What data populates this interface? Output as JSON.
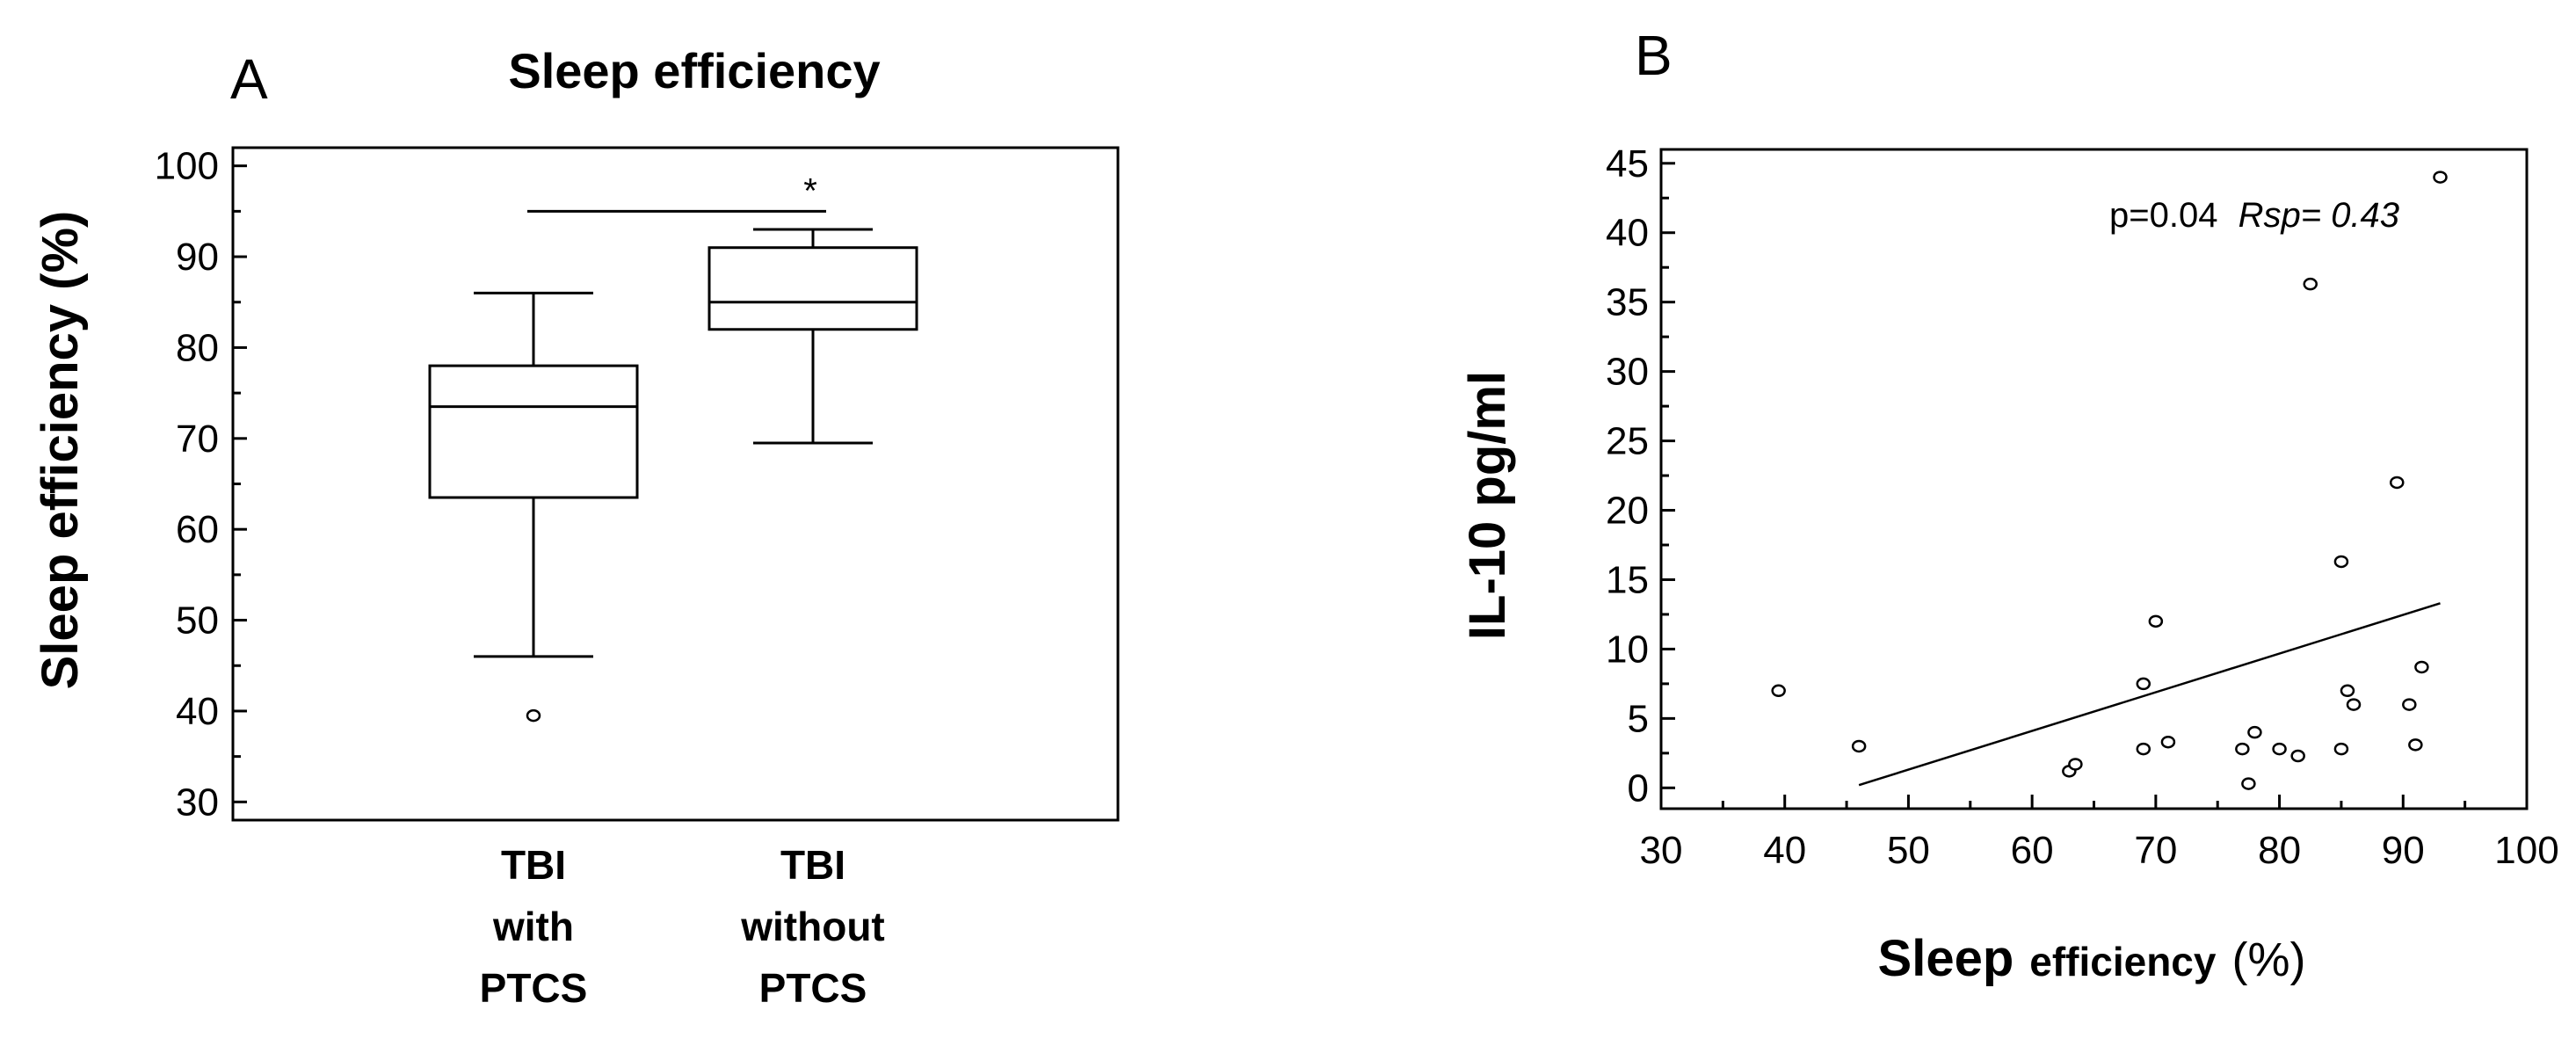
{
  "chart_data": [
    {
      "panel": "A",
      "type": "box",
      "title": "Sleep efficiency",
      "ylabel": "Sleep efficiency (%)",
      "ylim": [
        28,
        102
      ],
      "yticks": [
        30,
        40,
        50,
        60,
        70,
        80,
        90,
        100
      ],
      "categories": [
        "TBI with PTCS",
        "TBI without PTCS"
      ],
      "category_lines": [
        [
          "TBI",
          "with",
          "PTCS"
        ],
        [
          "TBI",
          "without",
          "PTCS"
        ]
      ],
      "boxes": [
        {
          "name": "TBI with PTCS",
          "whisker_low": 46,
          "q1": 63.5,
          "median": 73.5,
          "q3": 78,
          "whisker_high": 86,
          "outliers": [
            39.5
          ]
        },
        {
          "name": "TBI without PTCS",
          "whisker_low": 69.5,
          "q1": 82,
          "median": 85,
          "q3": 91,
          "whisker_high": 93,
          "outliers": []
        }
      ],
      "significance": {
        "label": "*",
        "y": 95
      }
    },
    {
      "panel": "B",
      "type": "scatter",
      "xlabel": "Sleep efficiency (%)",
      "xlabel_parts": {
        "word1": "Sleep",
        "word2": "efficiency",
        "unit": "(%)"
      },
      "ylabel": "IL-10 pg/ml",
      "xlim": [
        30,
        100
      ],
      "ylim": [
        -1.5,
        46
      ],
      "xticks": [
        30,
        40,
        50,
        60,
        70,
        80,
        90,
        100
      ],
      "yticks": [
        0,
        5,
        10,
        15,
        20,
        25,
        30,
        35,
        40,
        45
      ],
      "annotation": {
        "p": "p=0.04",
        "r": "Rsp= 0.43"
      },
      "points": [
        [
          39.5,
          7
        ],
        [
          46,
          3
        ],
        [
          63,
          1.2
        ],
        [
          63.5,
          1.7
        ],
        [
          69,
          7.5
        ],
        [
          69,
          2.8
        ],
        [
          70,
          12
        ],
        [
          71,
          3.3
        ],
        [
          77,
          2.8
        ],
        [
          77.5,
          0.3
        ],
        [
          78,
          4
        ],
        [
          80,
          2.8
        ],
        [
          81.5,
          2.3
        ],
        [
          82.5,
          36.3
        ],
        [
          85,
          2.8
        ],
        [
          85,
          16.3
        ],
        [
          85.5,
          7
        ],
        [
          86,
          6
        ],
        [
          89.5,
          22
        ],
        [
          90.5,
          6
        ],
        [
          91,
          3.1
        ],
        [
          91.5,
          8.7
        ],
        [
          93,
          44
        ]
      ],
      "trend_line": {
        "x": [
          46,
          93
        ],
        "y": [
          0.2,
          13.3
        ]
      }
    }
  ]
}
